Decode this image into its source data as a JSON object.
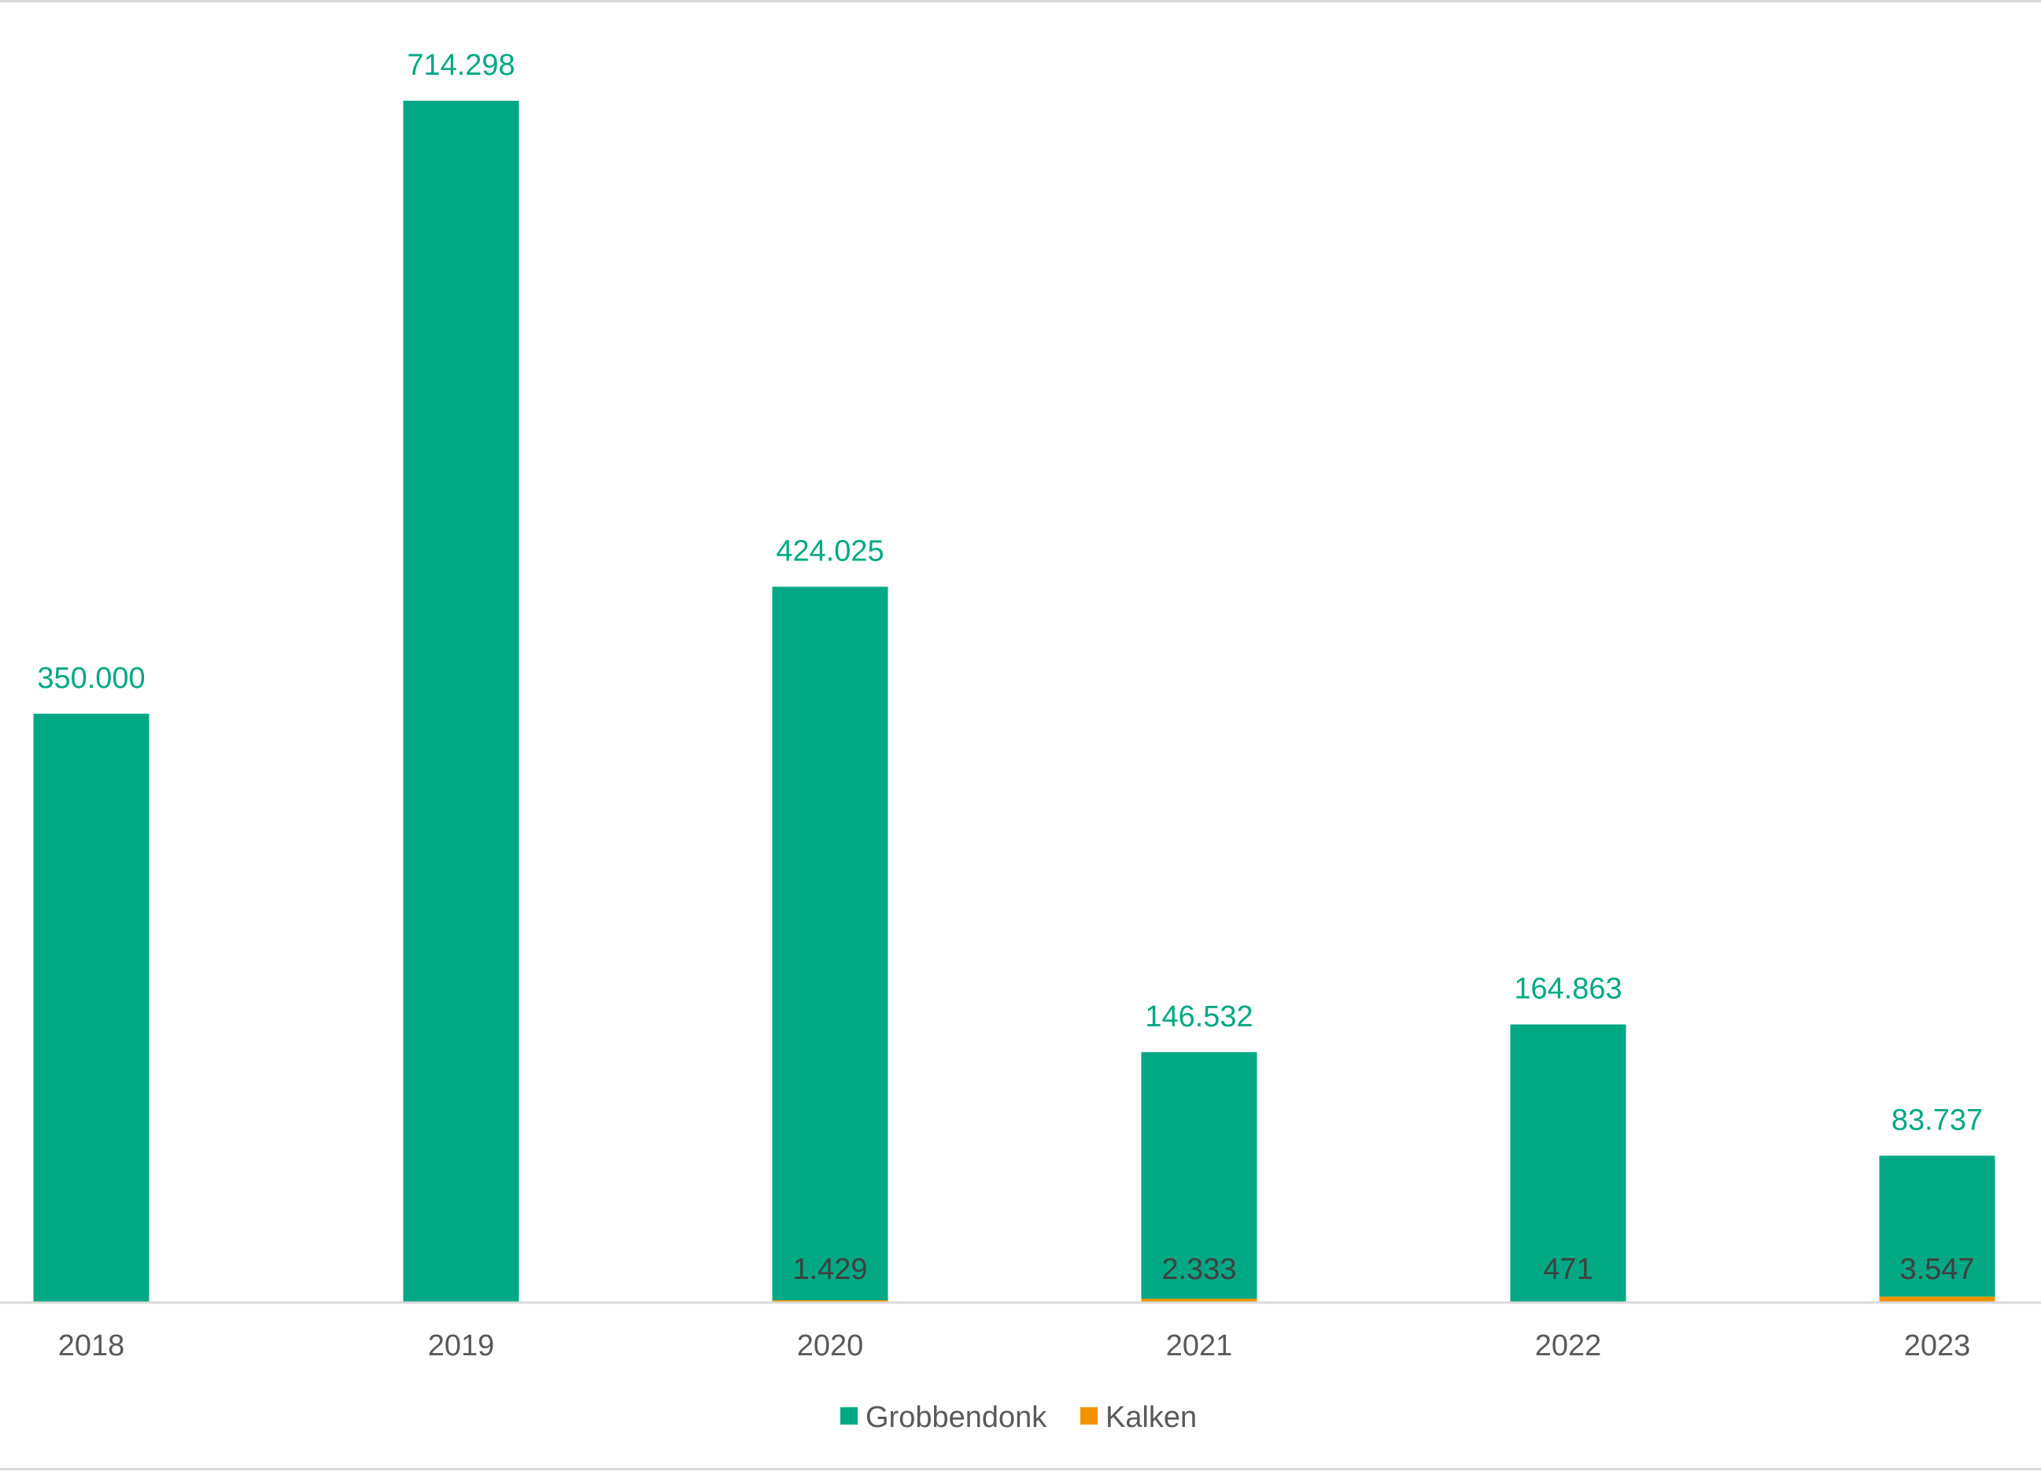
{
  "chart_data": {
    "type": "bar",
    "stacked": true,
    "title": "",
    "xlabel": "",
    "ylabel": "",
    "categories": [
      "2018",
      "2019",
      "2020",
      "2021",
      "2022",
      "2023"
    ],
    "series": [
      {
        "name": "Kalken",
        "color": "#F39200",
        "values": [
          0,
          0,
          1429,
          2333,
          471,
          3547
        ],
        "labels": [
          "",
          "",
          "1.429",
          "2.333",
          "471",
          "3.547"
        ],
        "label_color": "#404040"
      },
      {
        "name": "Grobbendonk",
        "color": "#00A884",
        "values": [
          350000,
          714298,
          424025,
          146532,
          164863,
          83737
        ],
        "labels": [
          "350.000",
          "714.298",
          "424.025",
          "146.532",
          "164.863",
          "83.737"
        ],
        "label_color": "#00A884"
      }
    ],
    "legend_order": [
      "Grobbendonk",
      "Kalken"
    ],
    "ylim": [
      0,
      720000
    ],
    "grid": false,
    "legend_position": "bottom"
  }
}
